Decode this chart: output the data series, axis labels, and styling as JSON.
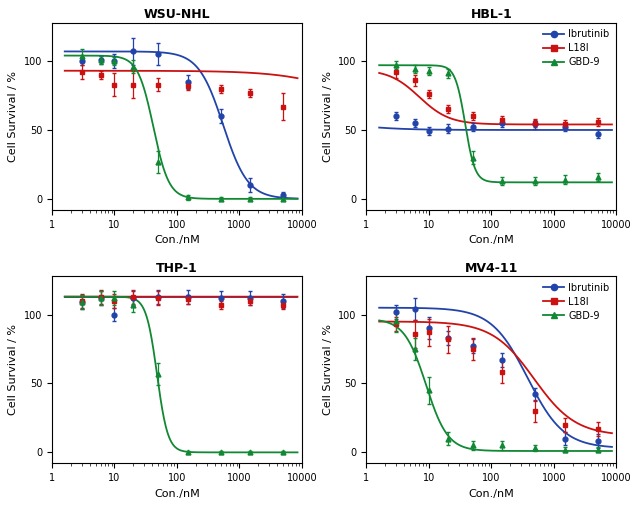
{
  "panels": [
    {
      "title": "WSU-NHL",
      "legend": false,
      "series": [
        {
          "label": "Ibrutinib",
          "color": "#2244aa",
          "marker": "o",
          "x": [
            3,
            6,
            10,
            20,
            50,
            150,
            500,
            1500,
            5000
          ],
          "y": [
            100,
            101,
            100,
            107,
            105,
            85,
            60,
            10,
            3
          ],
          "yerr": [
            3,
            3,
            5,
            10,
            8,
            5,
            5,
            5,
            2
          ],
          "ic50": 550,
          "top": 107,
          "bottom": 0,
          "hill": 2.2
        },
        {
          "label": "L18I",
          "color": "#cc1111",
          "marker": "s",
          "x": [
            3,
            6,
            10,
            20,
            50,
            150,
            500,
            1500,
            5000
          ],
          "y": [
            92,
            90,
            83,
            83,
            83,
            82,
            80,
            77,
            67
          ],
          "yerr": [
            5,
            3,
            8,
            10,
            5,
            3,
            3,
            3,
            10
          ],
          "ic50": 80000,
          "top": 93,
          "bottom": 55,
          "hill": 0.8
        },
        {
          "label": "GBD-9",
          "color": "#118833",
          "marker": "^",
          "x": [
            3,
            6,
            10,
            20,
            50,
            150,
            500,
            1500,
            5000
          ],
          "y": [
            104,
            101,
            100,
            96,
            27,
            1,
            0,
            0,
            0
          ],
          "yerr": [
            5,
            3,
            3,
            5,
            8,
            2,
            1,
            1,
            1
          ],
          "ic50": 42,
          "top": 104,
          "bottom": 0,
          "hill": 3.5
        }
      ]
    },
    {
      "title": "HBL-1",
      "legend": true,
      "series": [
        {
          "label": "Ibrutinib",
          "color": "#2244aa",
          "marker": "o",
          "x": [
            3,
            6,
            10,
            20,
            50,
            150,
            500,
            1500,
            5000
          ],
          "y": [
            60,
            55,
            49,
            51,
            52,
            55,
            54,
            52,
            47
          ],
          "yerr": [
            3,
            3,
            3,
            3,
            3,
            3,
            3,
            3,
            3
          ],
          "ic50": 0.3,
          "top": 61,
          "bottom": 50,
          "hill": 1.0
        },
        {
          "label": "L18I",
          "color": "#cc1111",
          "marker": "s",
          "x": [
            3,
            6,
            10,
            20,
            50,
            150,
            500,
            1500,
            5000
          ],
          "y": [
            92,
            86,
            76,
            65,
            60,
            57,
            55,
            54,
            56
          ],
          "yerr": [
            4,
            4,
            3,
            3,
            3,
            3,
            3,
            3,
            3
          ],
          "ic50": 7,
          "top": 94,
          "bottom": 54,
          "hill": 1.8
        },
        {
          "label": "GBD-9",
          "color": "#118833",
          "marker": "^",
          "x": [
            3,
            6,
            10,
            20,
            50,
            150,
            500,
            1500,
            5000
          ],
          "y": [
            97,
            94,
            93,
            91,
            30,
            13,
            13,
            14,
            16
          ],
          "yerr": [
            3,
            3,
            3,
            3,
            5,
            3,
            3,
            3,
            3
          ],
          "ic50": 38,
          "top": 97,
          "bottom": 12,
          "hill": 5.5
        }
      ]
    },
    {
      "title": "THP-1",
      "legend": false,
      "series": [
        {
          "label": "Ibrutinib",
          "color": "#2244aa",
          "marker": "o",
          "x": [
            3,
            6,
            10,
            20,
            50,
            150,
            500,
            1500,
            5000
          ],
          "y": [
            109,
            112,
            100,
            112,
            113,
            113,
            112,
            112,
            110
          ],
          "yerr": [
            5,
            5,
            5,
            5,
            5,
            5,
            5,
            5,
            5
          ],
          "ic50": 5000000,
          "top": 113,
          "bottom": 112,
          "hill": 1.0
        },
        {
          "label": "L18I",
          "color": "#cc1111",
          "marker": "s",
          "x": [
            3,
            6,
            10,
            20,
            50,
            150,
            500,
            1500,
            5000
          ],
          "y": [
            110,
            113,
            110,
            113,
            112,
            111,
            107,
            110,
            107
          ],
          "yerr": [
            5,
            5,
            5,
            5,
            5,
            3,
            3,
            3,
            3
          ],
          "ic50": 5000000,
          "top": 113,
          "bottom": 110,
          "hill": 1.0
        },
        {
          "label": "GBD-9",
          "color": "#118833",
          "marker": "^",
          "x": [
            3,
            6,
            10,
            20,
            50,
            150,
            500,
            1500,
            5000
          ],
          "y": [
            109,
            112,
            112,
            107,
            57,
            0,
            0,
            0,
            0
          ],
          "yerr": [
            5,
            5,
            5,
            5,
            8,
            1,
            1,
            1,
            1
          ],
          "ic50": 48,
          "top": 113,
          "bottom": 0,
          "hill": 5.0
        }
      ]
    },
    {
      "title": "MV4-11",
      "legend": true,
      "series": [
        {
          "label": "Ibrutinib",
          "color": "#2244aa",
          "marker": "o",
          "x": [
            3,
            6,
            10,
            20,
            50,
            150,
            500,
            1500,
            5000
          ],
          "y": [
            102,
            104,
            90,
            83,
            77,
            67,
            42,
            10,
            8
          ],
          "yerr": [
            5,
            8,
            8,
            5,
            5,
            5,
            5,
            5,
            5
          ],
          "ic50": 380,
          "top": 105,
          "bottom": 3,
          "hill": 1.5
        },
        {
          "label": "L18I",
          "color": "#cc1111",
          "marker": "s",
          "x": [
            3,
            6,
            10,
            20,
            50,
            150,
            500,
            1500,
            5000
          ],
          "y": [
            93,
            86,
            87,
            82,
            75,
            58,
            30,
            20,
            17
          ],
          "yerr": [
            5,
            10,
            10,
            10,
            8,
            8,
            8,
            5,
            5
          ],
          "ic50": 480,
          "top": 95,
          "bottom": 12,
          "hill": 1.3
        },
        {
          "label": "GBD-9",
          "color": "#118833",
          "marker": "^",
          "x": [
            3,
            6,
            10,
            20,
            50,
            150,
            500,
            1500,
            5000
          ],
          "y": [
            95,
            75,
            45,
            10,
            5,
            5,
            3,
            2,
            2
          ],
          "yerr": [
            8,
            8,
            10,
            5,
            3,
            3,
            2,
            2,
            2
          ],
          "ic50": 9,
          "top": 97,
          "bottom": 1,
          "hill": 2.5
        }
      ]
    }
  ],
  "xlabel": "Con./nM",
  "ylabel": "Cell Survival / %",
  "ylim": [
    -8,
    128
  ],
  "yticks": [
    0,
    50,
    100
  ],
  "xlim": [
    1.5,
    9000
  ],
  "background_color": "#ffffff",
  "legend_labels": [
    "Ibrutinib",
    "L18I",
    "GBD-9"
  ],
  "legend_colors": [
    "#2244aa",
    "#cc1111",
    "#118833"
  ],
  "legend_markers": [
    "o",
    "s",
    "^"
  ]
}
